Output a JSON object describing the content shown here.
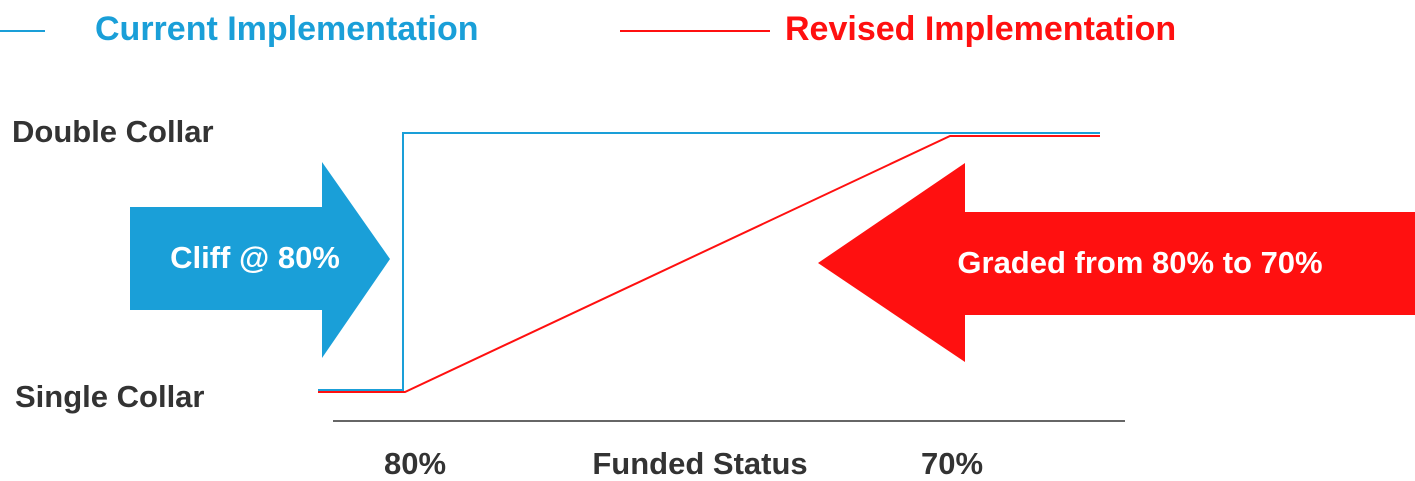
{
  "legend": {
    "items": [
      {
        "label": "Current Implementation",
        "color": "#1a9fd8"
      },
      {
        "label": "Revised Implementation",
        "color": "#ff1010"
      }
    ]
  },
  "y_labels": {
    "top": "Double Collar",
    "bottom": "Single Collar"
  },
  "arrows": {
    "left": "Cliff @ 80%",
    "right": "Graded from 80% to 70%"
  },
  "x_labels": {
    "left": "80%",
    "axis_title": "Funded Status",
    "right": "70%"
  }
}
